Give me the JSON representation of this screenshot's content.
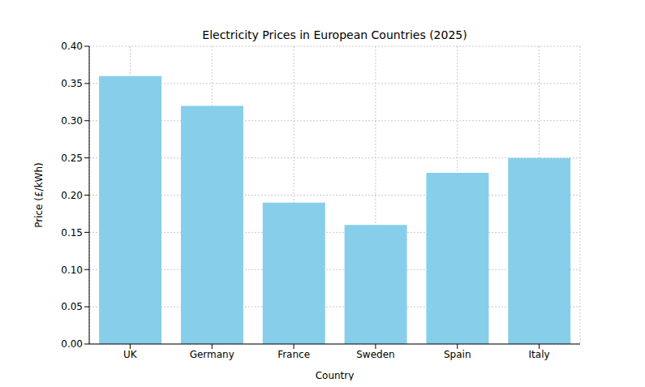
{
  "chart_data": {
    "type": "bar",
    "title": "Electricity Prices in European Countries (2025)",
    "x_label": "Country",
    "y_label": "Price (£/kWh)",
    "categories": [
      "UK",
      "Germany",
      "France",
      "Sweden",
      "Spain",
      "Italy"
    ],
    "values": [
      0.36,
      0.32,
      0.19,
      0.16,
      0.23,
      0.25
    ],
    "color": "#87ceeb",
    "ylim": [
      0,
      0.4
    ],
    "yticks": [
      {
        "value": 0,
        "label": "0.00"
      },
      {
        "value": 0.05,
        "label": "0.05"
      },
      {
        "value": 0.1,
        "label": "0.10"
      },
      {
        "value": 0.15,
        "label": "0.15"
      },
      {
        "value": 0.2,
        "label": "0.20"
      },
      {
        "value": 0.25,
        "label": "0.25"
      },
      {
        "value": 0.3,
        "label": "0.30"
      },
      {
        "value": 0.35,
        "label": "0.35"
      },
      {
        "value": 0.4,
        "label": "0.40"
      }
    ],
    "grid": true
  }
}
